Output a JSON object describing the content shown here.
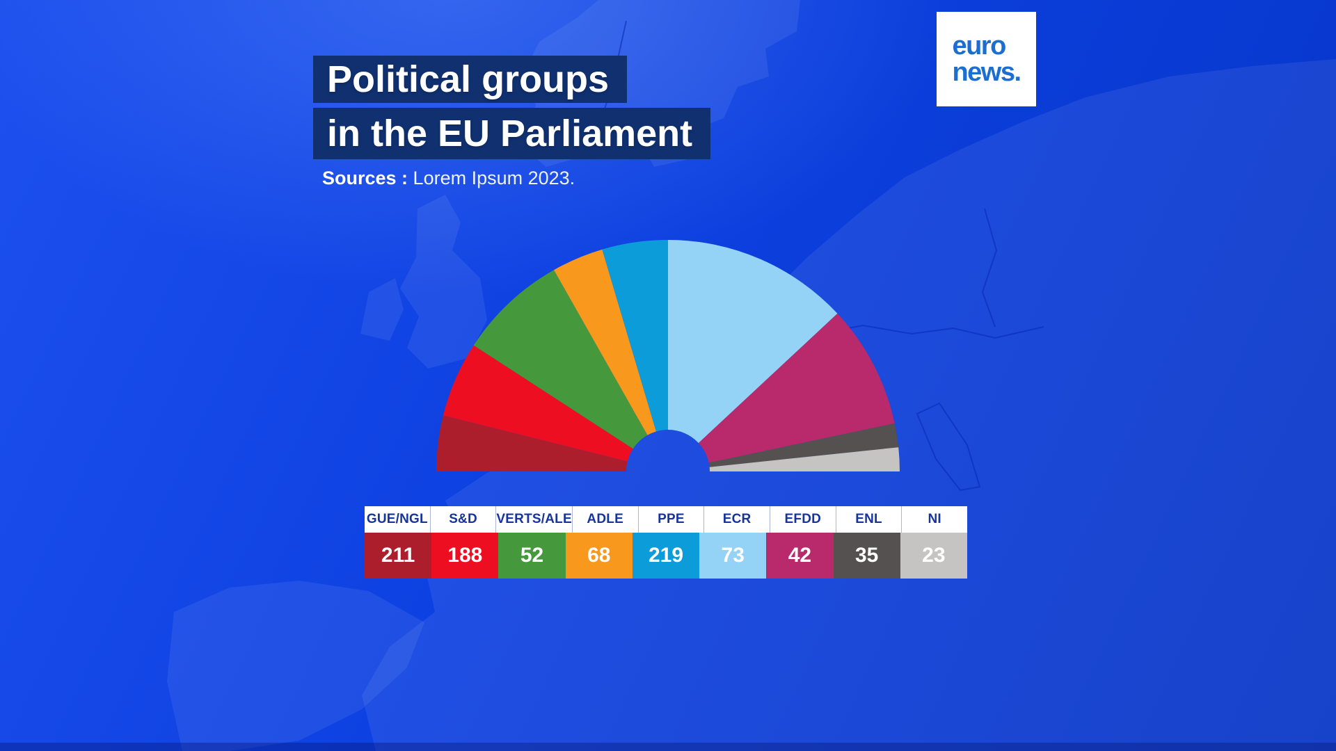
{
  "header": {
    "title_line1": "Political groups",
    "title_line2": "in the EU Parliament",
    "sources_bold": "Sources :",
    "sources_rest": " Lorem Ipsum 2023."
  },
  "logo": {
    "line1": "euro",
    "line2": "news."
  },
  "chart_data": {
    "type": "pie",
    "variant": "hemicycle-half-donut-parliament",
    "title": "Political groups in the EU Parliament",
    "legend_position": "bottom-table",
    "orientation": "half circle, 180deg left to 0deg right, flat base",
    "categories": [
      "GUE/NGL",
      "S&D",
      "VERTS/ALE",
      "ADLE",
      "PPE",
      "ECR",
      "EFDD",
      "ENL",
      "NI"
    ],
    "values": [
      211,
      188,
      52,
      68,
      219,
      73,
      42,
      35,
      23
    ],
    "groups": [
      {
        "label": "GUE/NGL",
        "value": "211",
        "color": "#ac1e2c",
        "sweep_deg": 14
      },
      {
        "label": "S&D",
        "value": "188",
        "color": "#ee0e22",
        "sweep_deg": 19
      },
      {
        "label": "VERTS/ALE",
        "value": "52",
        "color": "#45993c",
        "sweep_deg": 27.5
      },
      {
        "label": "ADLE",
        "value": "68",
        "color": "#f8991d",
        "sweep_deg": 13
      },
      {
        "label": "PPE",
        "value": "219",
        "color": "#0c9cd9",
        "sweep_deg": 16.5
      },
      {
        "label": "ECR",
        "value": "73",
        "color": "#94d2f6",
        "sweep_deg": 47
      },
      {
        "label": "EFDD",
        "value": "42",
        "color": "#b82a6c",
        "sweep_deg": 31
      },
      {
        "label": "ENL",
        "value": "35",
        "color": "#555150",
        "sweep_deg": 6
      },
      {
        "label": "NI",
        "value": "23",
        "color": "#c5c4c2",
        "sweep_deg": 6
      }
    ],
    "start_deg": 180,
    "end_deg": 0
  },
  "colors": {
    "background_bright": "#1d50ee",
    "background_mid": "#0d40e0",
    "background_dark": "#0534c6",
    "title_box": "#103070",
    "legend_header_text": "#16349c",
    "logo_blue": "#1c6fd1"
  }
}
